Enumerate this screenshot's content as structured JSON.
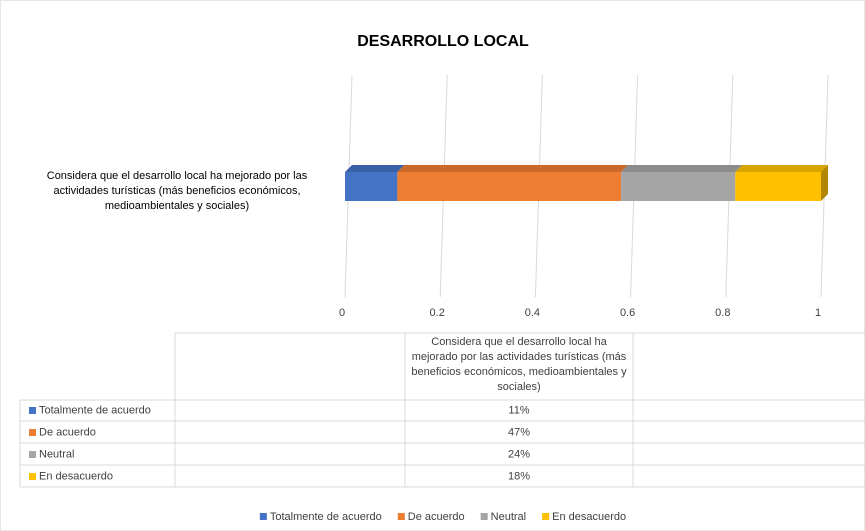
{
  "chart_data": {
    "type": "bar",
    "orientation": "horizontal",
    "stacked": true,
    "title": "DESARROLLO LOCAL",
    "categories": [
      "Considera que el desarrollo local ha mejorado por las actividades turísticas (más beneficios económicos, medioambientales y sociales)"
    ],
    "series": [
      {
        "name": "Totalmente de acuerdo",
        "color": "#4472c4",
        "values": [
          0.11
        ],
        "value_labels": [
          "11%"
        ]
      },
      {
        "name": "De acuerdo",
        "color": "#ed7d31",
        "values": [
          0.47
        ],
        "value_labels": [
          "47%"
        ]
      },
      {
        "name": "Neutral",
        "color": "#a5a5a5",
        "values": [
          0.24
        ],
        "value_labels": [
          "24%"
        ]
      },
      {
        "name": "En desacuerdo",
        "color": "#ffc000",
        "values": [
          0.18
        ],
        "value_labels": [
          "18%"
        ]
      }
    ],
    "xlim": [
      0,
      1
    ],
    "xticks": [
      0,
      0.2,
      0.4,
      0.6,
      0.8,
      1
    ],
    "grid": true,
    "legend": "bottom",
    "data_table": true
  }
}
